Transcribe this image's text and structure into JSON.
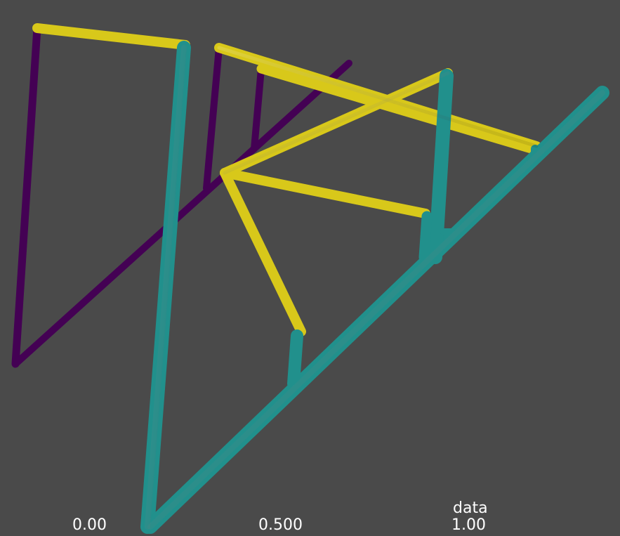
{
  "legend": {
    "title": "data",
    "ticks": [
      "0.00",
      "0.500",
      "1.00"
    ]
  },
  "colors": {
    "background": "#4a4a4a",
    "low": "#440154",
    "mid": "#21908c",
    "high": "#d8c81a"
  }
}
